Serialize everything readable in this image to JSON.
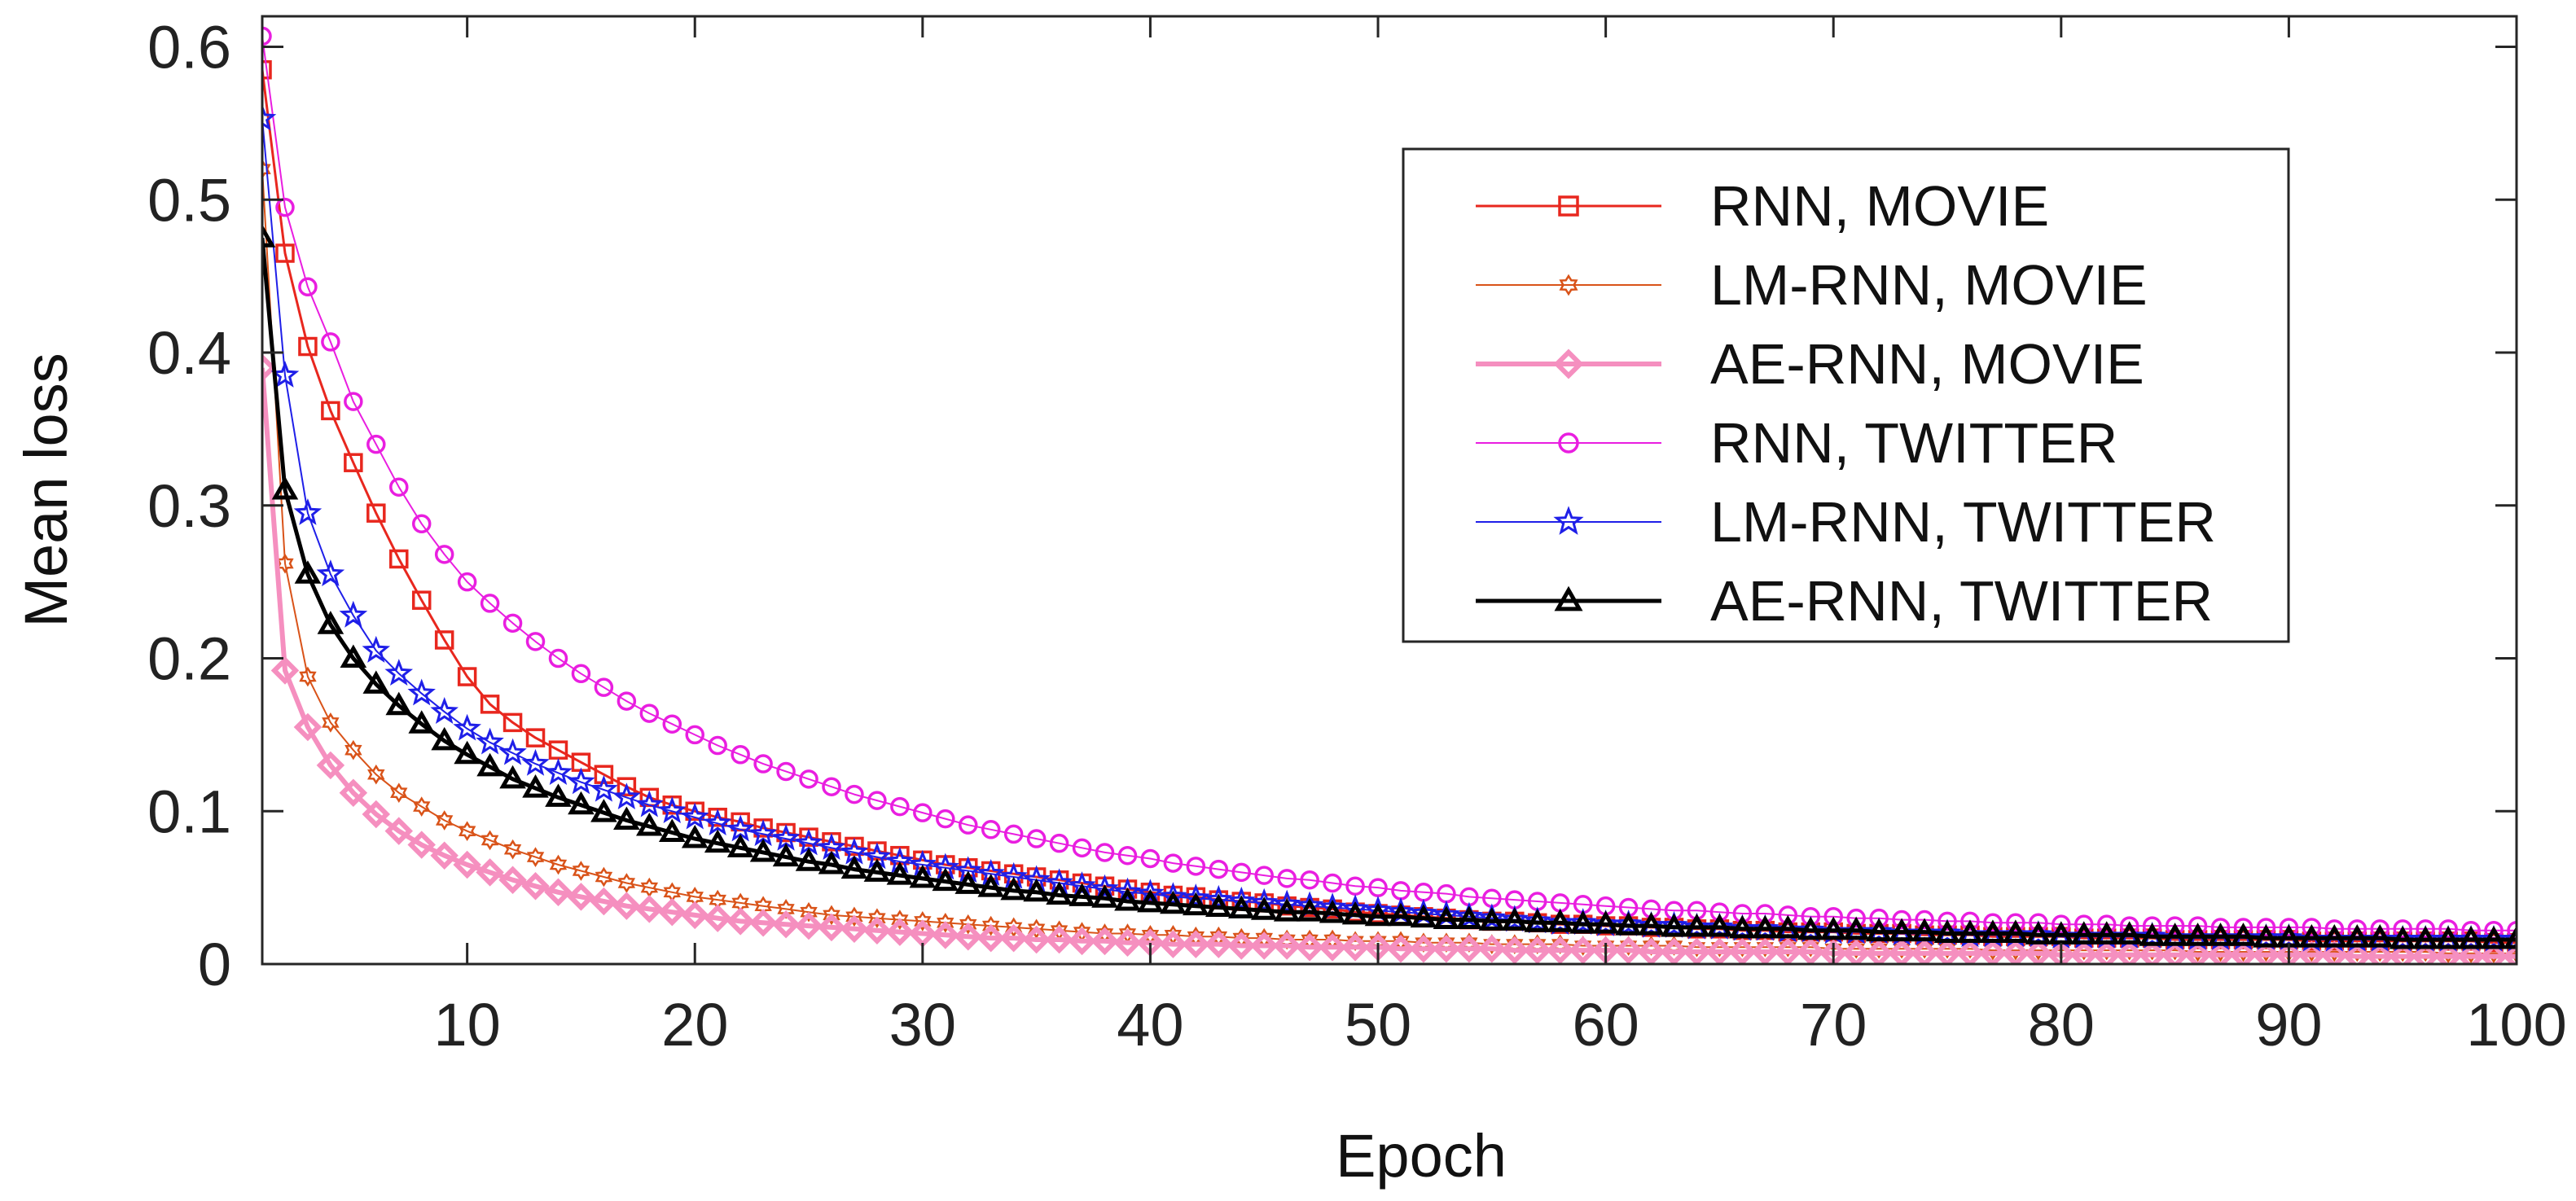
{
  "chart_data": {
    "type": "line",
    "title": "",
    "xlabel": "Epoch",
    "ylabel": "Mean loss",
    "xlim": [
      1,
      100
    ],
    "ylim": [
      0,
      0.62
    ],
    "xticks": [
      10,
      20,
      30,
      40,
      50,
      60,
      70,
      80,
      90,
      100
    ],
    "yticks": [
      0,
      0.1,
      0.2,
      0.3,
      0.4,
      0.5,
      0.6
    ],
    "xtick_labels": [
      "10",
      "20",
      "30",
      "40",
      "50",
      "60",
      "70",
      "80",
      "90",
      "100"
    ],
    "ytick_labels": [
      "0",
      "0.1",
      "0.2",
      "0.3",
      "0.4",
      "0.5",
      "0.6"
    ],
    "grid": false,
    "legend_position": "top-right",
    "series": [
      {
        "name": "RNN, MOVIE",
        "color": "#e8271e",
        "marker": "square",
        "linewidth": 3,
        "values": [
          0.585,
          0.465,
          0.404,
          0.362,
          0.328,
          0.295,
          0.265,
          0.238,
          0.212,
          0.188,
          0.17,
          0.158,
          0.148,
          0.14,
          0.132,
          0.124,
          0.116,
          0.109,
          0.104,
          0.1,
          0.096,
          0.093,
          0.089,
          0.086,
          0.083,
          0.08,
          0.077,
          0.074,
          0.071,
          0.068,
          0.065,
          0.063,
          0.061,
          0.059,
          0.057,
          0.055,
          0.053,
          0.051,
          0.049,
          0.047,
          0.045,
          0.044,
          0.042,
          0.041,
          0.04,
          0.038,
          0.037,
          0.036,
          0.034,
          0.033,
          0.032,
          0.031,
          0.03,
          0.029,
          0.028,
          0.028,
          0.027,
          0.026,
          0.026,
          0.025,
          0.025,
          0.024,
          0.024,
          0.023,
          0.023,
          0.022,
          0.022,
          0.021,
          0.021,
          0.021,
          0.02,
          0.02,
          0.02,
          0.019,
          0.019,
          0.019,
          0.018,
          0.018,
          0.018,
          0.018,
          0.017,
          0.017,
          0.017,
          0.017,
          0.016,
          0.016,
          0.016,
          0.016,
          0.016,
          0.016,
          0.015,
          0.015,
          0.015,
          0.015,
          0.015,
          0.015,
          0.015,
          0.015,
          0.014,
          0.014
        ]
      },
      {
        "name": "LM-RNN, MOVIE",
        "color": "#d95319",
        "marker": "hexagram",
        "linewidth": 2,
        "values": [
          0.52,
          0.262,
          0.188,
          0.158,
          0.14,
          0.124,
          0.112,
          0.103,
          0.094,
          0.087,
          0.081,
          0.075,
          0.07,
          0.065,
          0.061,
          0.057,
          0.053,
          0.05,
          0.047,
          0.044,
          0.042,
          0.04,
          0.038,
          0.036,
          0.034,
          0.032,
          0.031,
          0.03,
          0.029,
          0.028,
          0.027,
          0.026,
          0.025,
          0.024,
          0.023,
          0.022,
          0.021,
          0.02,
          0.02,
          0.019,
          0.019,
          0.018,
          0.018,
          0.017,
          0.017,
          0.016,
          0.016,
          0.016,
          0.015,
          0.015,
          0.015,
          0.014,
          0.014,
          0.014,
          0.013,
          0.013,
          0.013,
          0.013,
          0.012,
          0.012,
          0.012,
          0.012,
          0.012,
          0.011,
          0.011,
          0.011,
          0.011,
          0.011,
          0.011,
          0.01,
          0.01,
          0.01,
          0.01,
          0.01,
          0.01,
          0.01,
          0.009,
          0.009,
          0.009,
          0.009,
          0.009,
          0.009,
          0.009,
          0.009,
          0.009,
          0.008,
          0.008,
          0.008,
          0.008,
          0.008,
          0.008,
          0.008,
          0.008,
          0.008,
          0.008,
          0.008,
          0.007,
          0.007,
          0.007,
          0.007
        ]
      },
      {
        "name": "AE-RNN, MOVIE",
        "color": "#f58fbf",
        "marker": "diamond",
        "linewidth": 6,
        "values": [
          0.39,
          0.192,
          0.155,
          0.13,
          0.112,
          0.098,
          0.087,
          0.078,
          0.071,
          0.065,
          0.06,
          0.055,
          0.051,
          0.047,
          0.044,
          0.041,
          0.038,
          0.036,
          0.034,
          0.032,
          0.03,
          0.028,
          0.027,
          0.026,
          0.025,
          0.024,
          0.023,
          0.022,
          0.021,
          0.02,
          0.019,
          0.018,
          0.017,
          0.017,
          0.016,
          0.016,
          0.015,
          0.015,
          0.014,
          0.014,
          0.013,
          0.013,
          0.013,
          0.012,
          0.012,
          0.012,
          0.011,
          0.011,
          0.011,
          0.011,
          0.01,
          0.01,
          0.01,
          0.01,
          0.01,
          0.009,
          0.009,
          0.009,
          0.009,
          0.009,
          0.009,
          0.008,
          0.008,
          0.008,
          0.008,
          0.008,
          0.008,
          0.008,
          0.008,
          0.007,
          0.007,
          0.007,
          0.007,
          0.007,
          0.007,
          0.007,
          0.007,
          0.007,
          0.007,
          0.006,
          0.006,
          0.006,
          0.006,
          0.006,
          0.006,
          0.006,
          0.006,
          0.006,
          0.006,
          0.006,
          0.006,
          0.006,
          0.005,
          0.005,
          0.005,
          0.005,
          0.005,
          0.005,
          0.005,
          0.005
        ]
      },
      {
        "name": "RNN, TWITTER",
        "color": "#e91ee0",
        "marker": "circle",
        "linewidth": 2,
        "values": [
          0.607,
          0.495,
          0.443,
          0.407,
          0.368,
          0.34,
          0.312,
          0.288,
          0.268,
          0.25,
          0.236,
          0.223,
          0.211,
          0.2,
          0.19,
          0.181,
          0.172,
          0.164,
          0.157,
          0.15,
          0.143,
          0.137,
          0.131,
          0.126,
          0.121,
          0.116,
          0.111,
          0.107,
          0.103,
          0.099,
          0.095,
          0.091,
          0.088,
          0.085,
          0.082,
          0.079,
          0.076,
          0.073,
          0.071,
          0.069,
          0.066,
          0.064,
          0.062,
          0.06,
          0.058,
          0.056,
          0.055,
          0.053,
          0.051,
          0.05,
          0.048,
          0.047,
          0.046,
          0.044,
          0.043,
          0.042,
          0.041,
          0.04,
          0.039,
          0.038,
          0.037,
          0.036,
          0.035,
          0.035,
          0.034,
          0.033,
          0.033,
          0.032,
          0.031,
          0.031,
          0.03,
          0.03,
          0.029,
          0.029,
          0.028,
          0.028,
          0.027,
          0.027,
          0.027,
          0.026,
          0.026,
          0.026,
          0.025,
          0.025,
          0.025,
          0.025,
          0.024,
          0.024,
          0.024,
          0.024,
          0.024,
          0.023,
          0.023,
          0.023,
          0.023,
          0.023,
          0.023,
          0.022,
          0.022,
          0.022
        ]
      },
      {
        "name": "LM-RNN, TWITTER",
        "color": "#1f1fe8",
        "marker": "pentagram",
        "linewidth": 2,
        "values": [
          0.553,
          0.385,
          0.295,
          0.255,
          0.228,
          0.205,
          0.19,
          0.177,
          0.165,
          0.154,
          0.145,
          0.138,
          0.131,
          0.125,
          0.119,
          0.114,
          0.109,
          0.104,
          0.1,
          0.096,
          0.092,
          0.088,
          0.085,
          0.082,
          0.079,
          0.076,
          0.073,
          0.07,
          0.067,
          0.065,
          0.063,
          0.061,
          0.059,
          0.057,
          0.055,
          0.053,
          0.051,
          0.049,
          0.047,
          0.046,
          0.044,
          0.043,
          0.042,
          0.041,
          0.04,
          0.039,
          0.038,
          0.037,
          0.036,
          0.035,
          0.034,
          0.033,
          0.032,
          0.031,
          0.03,
          0.029,
          0.028,
          0.027,
          0.027,
          0.026,
          0.026,
          0.025,
          0.025,
          0.024,
          0.024,
          0.023,
          0.023,
          0.022,
          0.022,
          0.021,
          0.021,
          0.021,
          0.02,
          0.02,
          0.02,
          0.019,
          0.019,
          0.019,
          0.019,
          0.018,
          0.018,
          0.018,
          0.018,
          0.018,
          0.017,
          0.017,
          0.017,
          0.017,
          0.017,
          0.017,
          0.016,
          0.016,
          0.016,
          0.016,
          0.016,
          0.016,
          0.016,
          0.016,
          0.016,
          0.016
        ]
      },
      {
        "name": "AE-RNN, TWITTER",
        "color": "#000000",
        "marker": "triangle",
        "linewidth": 5,
        "values": [
          0.475,
          0.31,
          0.255,
          0.222,
          0.2,
          0.183,
          0.169,
          0.157,
          0.146,
          0.137,
          0.129,
          0.121,
          0.115,
          0.109,
          0.104,
          0.099,
          0.094,
          0.09,
          0.086,
          0.082,
          0.079,
          0.076,
          0.073,
          0.07,
          0.067,
          0.065,
          0.062,
          0.06,
          0.058,
          0.056,
          0.054,
          0.052,
          0.05,
          0.048,
          0.047,
          0.045,
          0.044,
          0.043,
          0.041,
          0.04,
          0.039,
          0.038,
          0.037,
          0.036,
          0.035,
          0.034,
          0.034,
          0.033,
          0.032,
          0.031,
          0.031,
          0.03,
          0.029,
          0.029,
          0.028,
          0.028,
          0.027,
          0.027,
          0.026,
          0.026,
          0.025,
          0.025,
          0.024,
          0.024,
          0.024,
          0.023,
          0.023,
          0.023,
          0.022,
          0.022,
          0.022,
          0.021,
          0.021,
          0.021,
          0.02,
          0.02,
          0.02,
          0.02,
          0.019,
          0.019,
          0.019,
          0.019,
          0.019,
          0.018,
          0.018,
          0.018,
          0.018,
          0.018,
          0.017,
          0.017,
          0.017,
          0.017,
          0.017,
          0.017,
          0.016,
          0.016,
          0.016,
          0.016,
          0.016,
          0.016
        ]
      }
    ]
  }
}
